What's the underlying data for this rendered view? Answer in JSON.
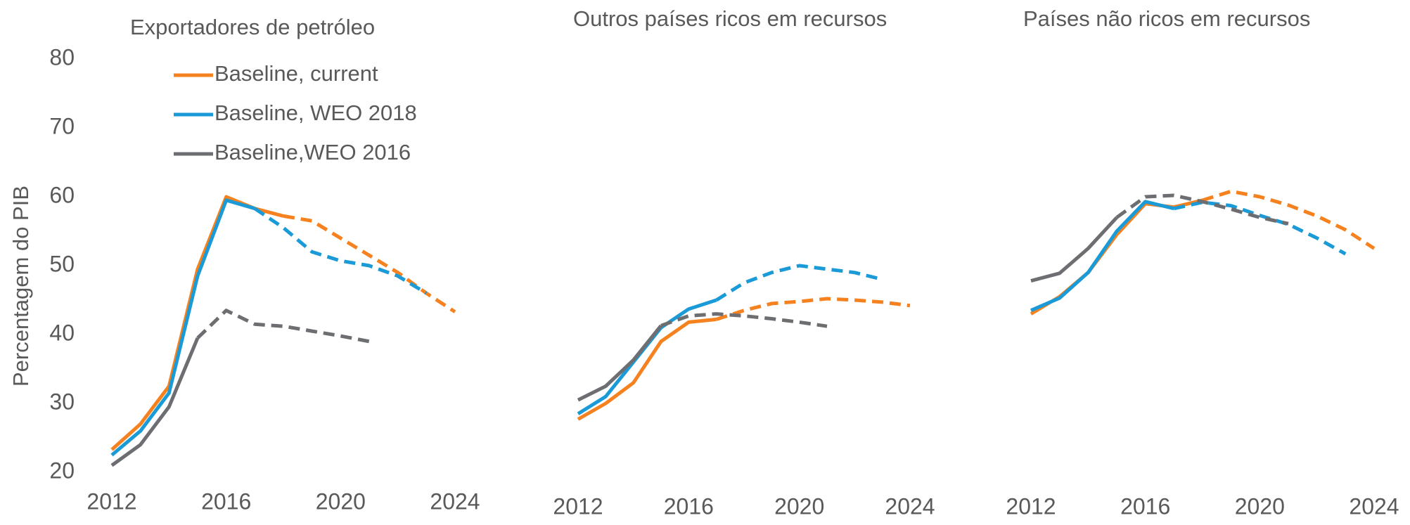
{
  "chart_data": [
    {
      "type": "line",
      "title": "Exportadores de petróleo",
      "ylabel": "Percentagem do PIB",
      "x": [
        2012,
        2013,
        2014,
        2015,
        2016,
        2017,
        2018,
        2019,
        2020,
        2021,
        2022,
        2023,
        2024
      ],
      "xlim": [
        2012,
        2024
      ],
      "xticks": [
        2012,
        2016,
        2020,
        2024
      ],
      "ylim": [
        20,
        80
      ],
      "yticks": [
        20,
        30,
        40,
        50,
        60,
        70,
        80
      ],
      "legend": "upper left",
      "series": [
        {
          "name": "Baseline, current",
          "color": "#f5821f",
          "dashed_from": 2018,
          "values": [
            23.3,
            27,
            32.5,
            49.5,
            60,
            58.3,
            57.2,
            56.5,
            54,
            51.5,
            49,
            46,
            43.3
          ]
        },
        {
          "name": "Baseline, WEO 2018",
          "color": "#1a9ad6",
          "dashed_from": 2017,
          "values": [
            22.5,
            26,
            31.5,
            48.5,
            59.5,
            58.3,
            55.5,
            52,
            50.7,
            50,
            48.5,
            46,
            null
          ]
        },
        {
          "name": "Baseline,WEO 2016",
          "color": "#6d6e71",
          "dashed_from": 2015,
          "values": [
            21,
            24,
            29.5,
            39.5,
            43.5,
            41.5,
            41.2,
            40.5,
            39.8,
            39,
            null,
            null,
            null
          ]
        }
      ]
    },
    {
      "type": "line",
      "title": "Outros países ricos em recursos",
      "x": [
        2012,
        2013,
        2014,
        2015,
        2016,
        2017,
        2018,
        2019,
        2020,
        2021,
        2022,
        2023,
        2024
      ],
      "xlim": [
        2012,
        2024
      ],
      "xticks": [
        2012,
        2016,
        2020,
        2024
      ],
      "ylim": [
        20,
        80
      ],
      "series": [
        {
          "color": "#f5821f",
          "dashed_from": 2017,
          "values": [
            27.7,
            30,
            33,
            39,
            41.8,
            42.2,
            43.5,
            44.5,
            44.8,
            45.2,
            45,
            44.7,
            44.2
          ]
        },
        {
          "color": "#1a9ad6",
          "dashed_from": 2017,
          "values": [
            28.5,
            31,
            36,
            41,
            43.7,
            45,
            47.5,
            49,
            50,
            49.5,
            49,
            48,
            null
          ]
        },
        {
          "color": "#6d6e71",
          "dashed_from": 2015,
          "values": [
            30.5,
            32.5,
            36.3,
            41.3,
            42.7,
            43,
            42.7,
            42.3,
            41.8,
            41.2,
            null,
            null,
            null
          ]
        }
      ]
    },
    {
      "type": "line",
      "title": "Países não ricos em recursos",
      "x": [
        2012,
        2013,
        2014,
        2015,
        2016,
        2017,
        2018,
        2019,
        2020,
        2021,
        2022,
        2023,
        2024
      ],
      "xlim": [
        2012,
        2024
      ],
      "xticks": [
        2012,
        2016,
        2020,
        2024
      ],
      "ylim": [
        20,
        80
      ],
      "series": [
        {
          "color": "#f5821f",
          "dashed_from": 2018,
          "values": [
            43,
            45.5,
            49,
            54.5,
            59,
            58.5,
            59.5,
            60.8,
            60,
            58.8,
            57.2,
            55.2,
            52.5
          ]
        },
        {
          "color": "#1a9ad6",
          "dashed_from": 2017,
          "values": [
            43.5,
            45.3,
            49,
            55,
            59.3,
            58.3,
            59.2,
            58.7,
            57.3,
            56,
            54,
            51.7,
            null
          ]
        },
        {
          "color": "#6d6e71",
          "dashed_from": 2015,
          "values": [
            47.8,
            48.9,
            52.5,
            57,
            60,
            60.2,
            59.3,
            58.2,
            57,
            56.1,
            null,
            null,
            null
          ]
        }
      ]
    }
  ]
}
